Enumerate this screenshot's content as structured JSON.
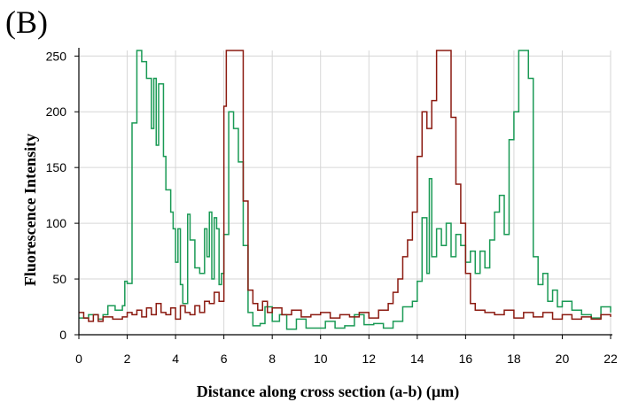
{
  "panel_label": "(B)",
  "chart_data": {
    "type": "line",
    "title": "",
    "xlabel": "Distance along cross section (a-b) (µm)",
    "ylabel": "Fluorescence Intensity",
    "xlim": [
      0,
      22
    ],
    "ylim": [
      0,
      255
    ],
    "xticks": [
      0,
      2,
      4,
      6,
      8,
      10,
      12,
      14,
      16,
      18,
      20,
      22
    ],
    "yticks": [
      0,
      50,
      100,
      150,
      200,
      250
    ],
    "grid": true,
    "legend": "none",
    "series": [
      {
        "color": "#1a9a55",
        "style": "step",
        "points": [
          [
            0,
            15
          ],
          [
            0.4,
            18
          ],
          [
            0.8,
            14
          ],
          [
            1.0,
            18
          ],
          [
            1.2,
            26
          ],
          [
            1.5,
            22
          ],
          [
            1.8,
            26
          ],
          [
            1.9,
            48
          ],
          [
            2.0,
            46
          ],
          [
            2.2,
            190
          ],
          [
            2.4,
            255
          ],
          [
            2.6,
            245
          ],
          [
            2.8,
            230
          ],
          [
            3.0,
            185
          ],
          [
            3.1,
            230
          ],
          [
            3.2,
            170
          ],
          [
            3.3,
            225
          ],
          [
            3.5,
            160
          ],
          [
            3.6,
            130
          ],
          [
            3.8,
            110
          ],
          [
            3.9,
            95
          ],
          [
            4.0,
            65
          ],
          [
            4.1,
            95
          ],
          [
            4.2,
            45
          ],
          [
            4.3,
            28
          ],
          [
            4.5,
            108
          ],
          [
            4.6,
            85
          ],
          [
            4.8,
            60
          ],
          [
            5.0,
            55
          ],
          [
            5.2,
            95
          ],
          [
            5.3,
            70
          ],
          [
            5.4,
            110
          ],
          [
            5.5,
            50
          ],
          [
            5.6,
            105
          ],
          [
            5.7,
            95
          ],
          [
            5.8,
            45
          ],
          [
            5.9,
            55
          ],
          [
            6.0,
            90
          ],
          [
            6.2,
            200
          ],
          [
            6.4,
            185
          ],
          [
            6.6,
            155
          ],
          [
            6.8,
            80
          ],
          [
            7.0,
            20
          ],
          [
            7.2,
            8
          ],
          [
            7.5,
            10
          ],
          [
            7.7,
            25
          ],
          [
            8.0,
            12
          ],
          [
            8.3,
            18
          ],
          [
            8.6,
            5
          ],
          [
            9.0,
            14
          ],
          [
            9.4,
            6
          ],
          [
            9.8,
            6
          ],
          [
            10.2,
            12
          ],
          [
            10.6,
            6
          ],
          [
            11.0,
            8
          ],
          [
            11.4,
            18
          ],
          [
            11.8,
            9
          ],
          [
            12.2,
            10
          ],
          [
            12.6,
            6
          ],
          [
            13.0,
            12
          ],
          [
            13.4,
            25
          ],
          [
            13.8,
            30
          ],
          [
            14.0,
            48
          ],
          [
            14.2,
            105
          ],
          [
            14.4,
            55
          ],
          [
            14.5,
            140
          ],
          [
            14.6,
            70
          ],
          [
            14.8,
            95
          ],
          [
            15.0,
            80
          ],
          [
            15.2,
            100
          ],
          [
            15.4,
            70
          ],
          [
            15.6,
            90
          ],
          [
            15.8,
            80
          ],
          [
            16.0,
            65
          ],
          [
            16.2,
            75
          ],
          [
            16.4,
            55
          ],
          [
            16.6,
            75
          ],
          [
            16.8,
            60
          ],
          [
            17.0,
            85
          ],
          [
            17.2,
            110
          ],
          [
            17.4,
            125
          ],
          [
            17.6,
            90
          ],
          [
            17.8,
            175
          ],
          [
            18.0,
            200
          ],
          [
            18.2,
            255
          ],
          [
            18.6,
            230
          ],
          [
            18.8,
            70
          ],
          [
            19.0,
            45
          ],
          [
            19.2,
            55
          ],
          [
            19.4,
            30
          ],
          [
            19.6,
            40
          ],
          [
            19.8,
            25
          ],
          [
            20.0,
            30
          ],
          [
            20.4,
            22
          ],
          [
            20.8,
            18
          ],
          [
            21.2,
            15
          ],
          [
            21.6,
            25
          ],
          [
            22,
            20
          ]
        ]
      },
      {
        "color": "#8b1a10",
        "style": "step",
        "points": [
          [
            0,
            20
          ],
          [
            0.2,
            15
          ],
          [
            0.4,
            12
          ],
          [
            0.6,
            18
          ],
          [
            0.8,
            12
          ],
          [
            1.0,
            16
          ],
          [
            1.4,
            14
          ],
          [
            1.8,
            16
          ],
          [
            2.0,
            20
          ],
          [
            2.2,
            18
          ],
          [
            2.4,
            22
          ],
          [
            2.6,
            16
          ],
          [
            2.8,
            24
          ],
          [
            3.0,
            18
          ],
          [
            3.2,
            28
          ],
          [
            3.4,
            20
          ],
          [
            3.6,
            18
          ],
          [
            3.8,
            24
          ],
          [
            4.0,
            14
          ],
          [
            4.2,
            26
          ],
          [
            4.4,
            20
          ],
          [
            4.6,
            18
          ],
          [
            4.8,
            26
          ],
          [
            5.0,
            20
          ],
          [
            5.2,
            30
          ],
          [
            5.4,
            28
          ],
          [
            5.6,
            38
          ],
          [
            5.8,
            30
          ],
          [
            6.0,
            205
          ],
          [
            6.1,
            255
          ],
          [
            6.8,
            120
          ],
          [
            7.0,
            40
          ],
          [
            7.2,
            28
          ],
          [
            7.4,
            22
          ],
          [
            7.6,
            30
          ],
          [
            7.8,
            20
          ],
          [
            8.0,
            24
          ],
          [
            8.4,
            18
          ],
          [
            8.8,
            22
          ],
          [
            9.2,
            16
          ],
          [
            9.6,
            18
          ],
          [
            10.0,
            20
          ],
          [
            10.4,
            15
          ],
          [
            10.8,
            18
          ],
          [
            11.2,
            16
          ],
          [
            11.6,
            20
          ],
          [
            12.0,
            15
          ],
          [
            12.4,
            22
          ],
          [
            12.8,
            28
          ],
          [
            13.0,
            38
          ],
          [
            13.2,
            50
          ],
          [
            13.4,
            70
          ],
          [
            13.6,
            85
          ],
          [
            13.8,
            110
          ],
          [
            14.0,
            160
          ],
          [
            14.2,
            200
          ],
          [
            14.4,
            185
          ],
          [
            14.6,
            210
          ],
          [
            14.8,
            255
          ],
          [
            15.4,
            195
          ],
          [
            15.6,
            135
          ],
          [
            15.8,
            100
          ],
          [
            16.0,
            55
          ],
          [
            16.2,
            28
          ],
          [
            16.4,
            22
          ],
          [
            16.8,
            20
          ],
          [
            17.2,
            18
          ],
          [
            17.6,
            22
          ],
          [
            18.0,
            15
          ],
          [
            18.4,
            20
          ],
          [
            18.8,
            16
          ],
          [
            19.2,
            20
          ],
          [
            19.6,
            14
          ],
          [
            20.0,
            18
          ],
          [
            20.4,
            14
          ],
          [
            20.8,
            16
          ],
          [
            21.2,
            14
          ],
          [
            21.6,
            18
          ],
          [
            22,
            16
          ]
        ]
      }
    ]
  }
}
